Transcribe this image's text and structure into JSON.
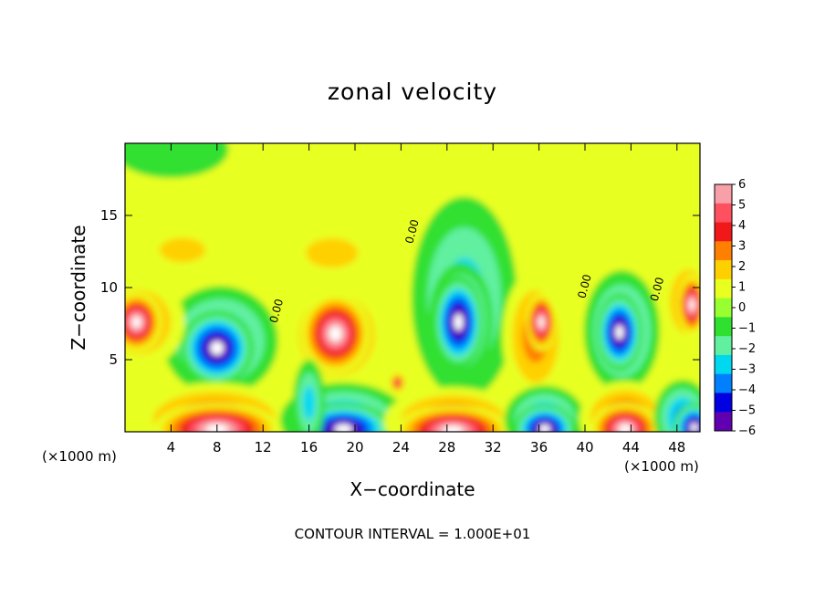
{
  "chart_data": {
    "type": "heatmap",
    "title": "zonal velocity",
    "xlabel": "X−coordinate",
    "ylabel": "Z−coordinate",
    "x_unit_left": "(×1000 m)",
    "x_unit_right": "(×1000 m)",
    "footer": "CONTOUR INTERVAL = 1.000E+01",
    "xlim": [
      0,
      50
    ],
    "ylim": [
      0,
      20
    ],
    "x_ticks": [
      4,
      8,
      12,
      16,
      20,
      24,
      28,
      32,
      36,
      40,
      44,
      48
    ],
    "x_tick_labels": [
      "4",
      "8",
      "12",
      "16",
      "20",
      "24",
      "28",
      "32",
      "36",
      "40",
      "44",
      "48"
    ],
    "y_ticks": [
      5,
      10,
      15
    ],
    "y_tick_labels": [
      "5",
      "10",
      "15"
    ],
    "colorbar": {
      "levels": [
        6,
        5,
        4,
        3,
        2,
        1,
        0,
        -1,
        -2,
        -3,
        -4,
        -5,
        -6
      ],
      "labels": [
        "6",
        "5",
        "4",
        "3",
        "2",
        "1",
        "0",
        "−1",
        "−2",
        "−3",
        "−4",
        "−5",
        "−6"
      ],
      "colors": [
        "#f7a0a8",
        "#ff5060",
        "#f01818",
        "#ff8000",
        "#ffd000",
        "#e8ff20",
        "#98ff30",
        "#30e030",
        "#60f0a0",
        "#00d8f0",
        "#0080ff",
        "#0000e0",
        "#6000b0"
      ]
    },
    "contour_labels": [
      {
        "text": "0.00",
        "x": 25.0,
        "y": 13.0
      },
      {
        "text": "0.00",
        "x": 13.2,
        "y": 7.5
      },
      {
        "text": "0.00",
        "x": 40.0,
        "y": 9.2
      },
      {
        "text": "0.00",
        "x": 46.3,
        "y": 9.0
      }
    ],
    "blobs": [
      {
        "x": 29.5,
        "y": 9.3,
        "rx": 4.6,
        "ry": 7.0,
        "value": -3
      },
      {
        "x": 29.2,
        "y": 7.7,
        "rx": 2.8,
        "ry": 4.0,
        "value": -5.5
      },
      {
        "x": 29.0,
        "y": 7.6,
        "rx": 2.2,
        "ry": 3.2,
        "value": -20
      },
      {
        "x": 8.3,
        "y": 6.3,
        "rx": 5.0,
        "ry": 3.8,
        "value": -4
      },
      {
        "x": 8.0,
        "y": 5.8,
        "rx": 3.2,
        "ry": 2.6,
        "value": -20
      },
      {
        "x": 43.2,
        "y": 7.0,
        "rx": 3.3,
        "ry": 4.2,
        "value": -4
      },
      {
        "x": 43.0,
        "y": 6.9,
        "rx": 2.0,
        "ry": 2.7,
        "value": -20
      },
      {
        "x": 18.4,
        "y": 6.7,
        "rx": 4.3,
        "ry": 3.7,
        "value": 4
      },
      {
        "x": 18.3,
        "y": 6.8,
        "rx": 3.0,
        "ry": 2.8,
        "value": 20
      },
      {
        "x": 35.7,
        "y": 6.6,
        "rx": 2.9,
        "ry": 4.6,
        "value": 3
      },
      {
        "x": 36.2,
        "y": 7.6,
        "rx": 1.3,
        "ry": 2.0,
        "value": 20
      },
      {
        "x": 1.2,
        "y": 7.6,
        "rx": 4.0,
        "ry": 3.2,
        "value": 3
      },
      {
        "x": 1.0,
        "y": 7.6,
        "rx": 2.2,
        "ry": 2.1,
        "value": 20
      },
      {
        "x": 49.0,
        "y": 9.0,
        "rx": 2.3,
        "ry": 3.2,
        "value": 3
      },
      {
        "x": 49.3,
        "y": 8.8,
        "rx": 1.2,
        "ry": 2.1,
        "value": 20
      },
      {
        "x": 7.8,
        "y": 0.8,
        "rx": 7.0,
        "ry": 2.6,
        "value": 4
      },
      {
        "x": 8.0,
        "y": 0.2,
        "rx": 5.5,
        "ry": 1.8,
        "value": 20
      },
      {
        "x": 19.0,
        "y": 0.8,
        "rx": 5.5,
        "ry": 2.6,
        "value": -4
      },
      {
        "x": 19.0,
        "y": 0.2,
        "rx": 4.3,
        "ry": 1.8,
        "value": -20
      },
      {
        "x": 28.5,
        "y": 0.7,
        "rx": 6.0,
        "ry": 2.4,
        "value": 4
      },
      {
        "x": 28.5,
        "y": 0.1,
        "rx": 5.0,
        "ry": 1.7,
        "value": 20
      },
      {
        "x": 36.5,
        "y": 0.8,
        "rx": 3.5,
        "ry": 2.4,
        "value": -4
      },
      {
        "x": 36.5,
        "y": 0.2,
        "rx": 2.7,
        "ry": 1.7,
        "value": -20
      },
      {
        "x": 43.5,
        "y": 0.9,
        "rx": 4.0,
        "ry": 2.6,
        "value": 4
      },
      {
        "x": 43.5,
        "y": 0.2,
        "rx": 3.0,
        "ry": 1.8,
        "value": 20
      },
      {
        "x": 48.5,
        "y": 1.0,
        "rx": 2.5,
        "ry": 2.6,
        "value": -4
      },
      {
        "x": 49.5,
        "y": 0.3,
        "rx": 1.8,
        "ry": 1.7,
        "value": -20
      },
      {
        "x": 5.0,
        "y": 12.6,
        "rx": 3.5,
        "ry": 1.5,
        "value": 2.5
      },
      {
        "x": 18.0,
        "y": 12.4,
        "rx": 4.0,
        "ry": 1.8,
        "value": 2
      },
      {
        "x": 4.0,
        "y": 19.6,
        "rx": 5.0,
        "ry": 2.0,
        "value": -1.5
      },
      {
        "x": 16.0,
        "y": 2.0,
        "rx": 1.4,
        "ry": 3.0,
        "value": -3
      },
      {
        "x": 23.7,
        "y": 3.4,
        "rx": 0.7,
        "ry": 0.7,
        "value": 5
      }
    ]
  }
}
